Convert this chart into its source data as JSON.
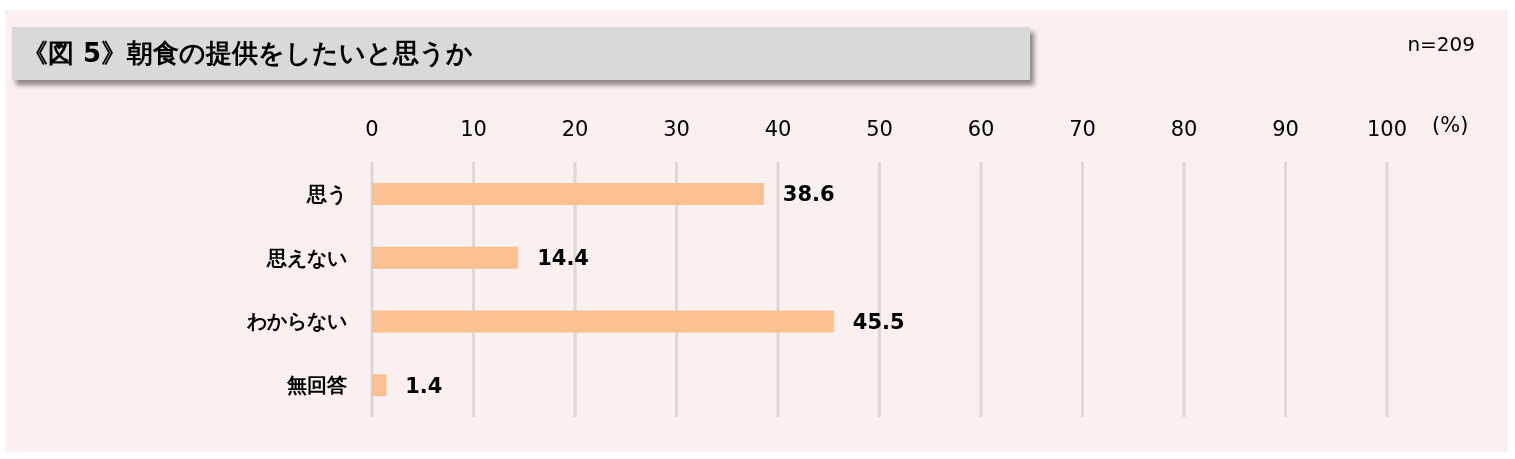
{
  "chart_data": {
    "type": "bar",
    "orientation": "horizontal",
    "title": "《図 5》朝食の提供をしたいと思うか",
    "xlabel": "(%)",
    "annotations": [
      "n=209"
    ],
    "categories": [
      "思う",
      "思えない",
      "わからない",
      "無回答"
    ],
    "values": [
      38.6,
      14.4,
      45.5,
      1.4
    ],
    "color": "#fac090",
    "xlim": [
      0,
      100
    ],
    "xticks": [
      0,
      10,
      20,
      30,
      40,
      50,
      60,
      70,
      80,
      90,
      100
    ],
    "grid": "x",
    "data_labels": true
  }
}
